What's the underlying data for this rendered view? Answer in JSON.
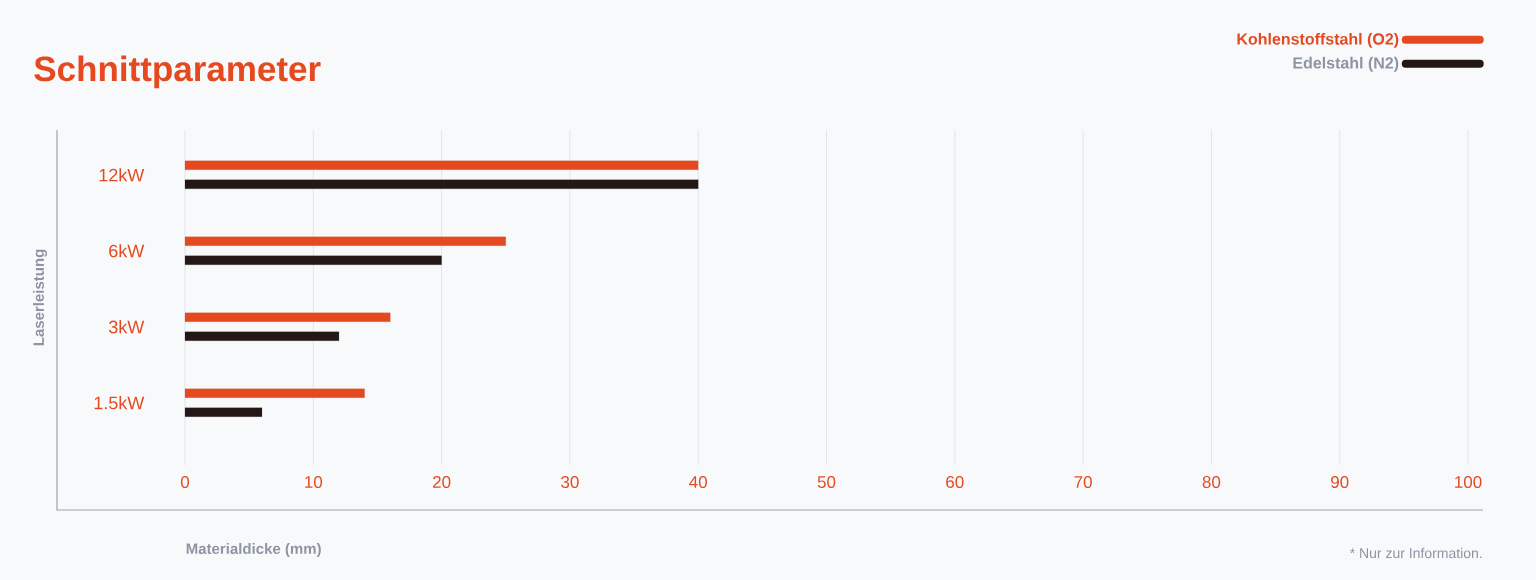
{
  "chart_data": {
    "type": "bar",
    "orientation": "horizontal",
    "title": "Schnittparameter",
    "xlabel": "Materialdicke (mm)",
    "ylabel": "Laserleistung",
    "categories": [
      "12kW",
      "6kW",
      "3kW",
      "1.5kW"
    ],
    "series": [
      {
        "name": "Kohlenstoffstahl (O2)",
        "color": "#e4491f",
        "values": [
          40,
          25,
          16,
          14
        ]
      },
      {
        "name": "Edelstahl (N2)",
        "color": "#231815",
        "values": [
          40,
          20,
          12,
          6
        ]
      }
    ],
    "xlim": [
      0,
      100
    ],
    "xticks": [
      0,
      10,
      20,
      30,
      40,
      50,
      60,
      70,
      80,
      90,
      100
    ],
    "grid": "x",
    "legend": "top right",
    "annotations": [
      "* Nur zur Information."
    ]
  }
}
